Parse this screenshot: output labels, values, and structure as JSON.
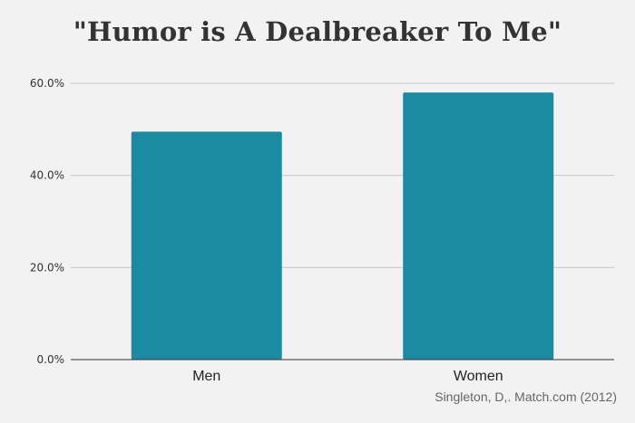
{
  "chart": {
    "title": "\"Humor is A Dealbreaker To Me\"",
    "source": "Singleton, D,. Match.com (2012)"
  },
  "colors": {
    "background": "#f2f2f2",
    "bar": "#1c8aa0",
    "gridline": "#c8c8c8",
    "axis": "#333333"
  },
  "chart_data": {
    "type": "bar",
    "title": "\"Humor is A Dealbreaker To Me\"",
    "categories": [
      "Men",
      "Women"
    ],
    "values": [
      49.5,
      58.0
    ],
    "ylim": [
      0,
      60
    ],
    "yticks": [
      0,
      20,
      40,
      60
    ],
    "ytick_labels": [
      "0.0%",
      "20.0%",
      "40.0%",
      "60.0%"
    ],
    "grid": true,
    "xlabel": "",
    "ylabel": ""
  }
}
